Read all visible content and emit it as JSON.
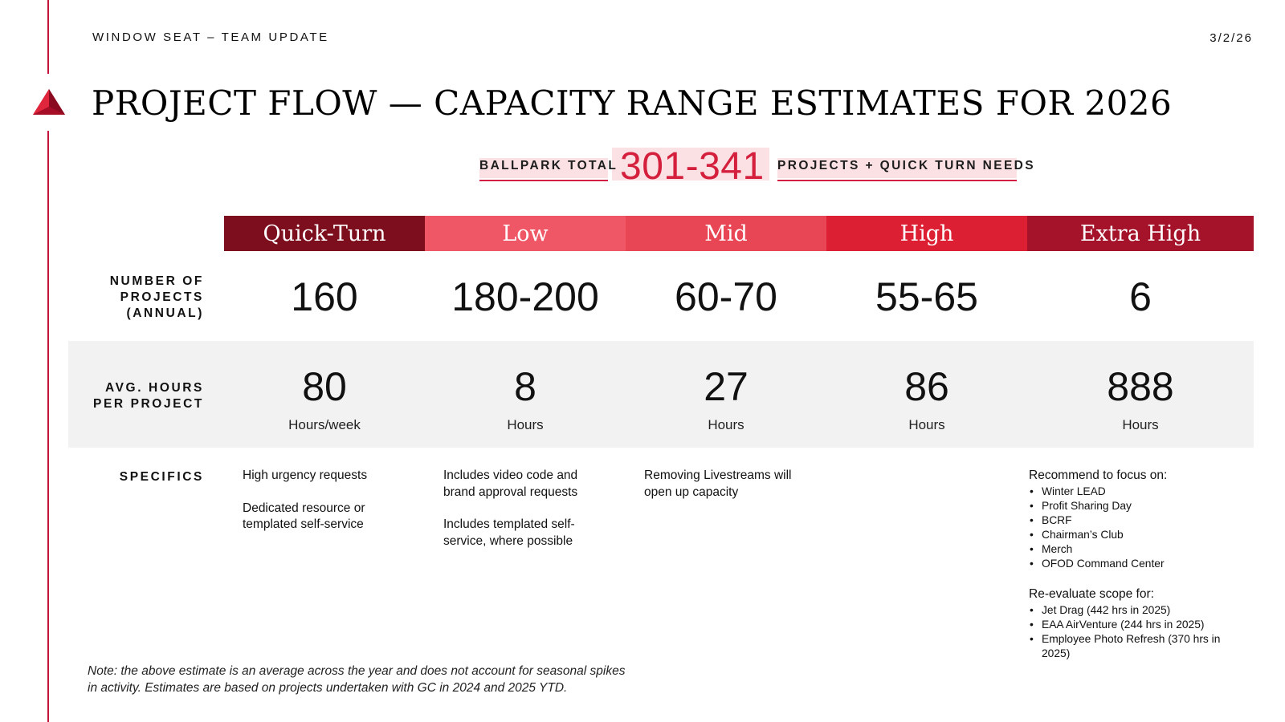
{
  "header": {
    "kicker": "WINDOW SEAT – TEAM UPDATE",
    "date": "3/2/26"
  },
  "title": "PROJECT FLOW — CAPACITY RANGE ESTIMATES FOR 2026",
  "ballpark": {
    "left_label": "BALLPARK TOTAL",
    "number": "301-341",
    "right_label": "PROJECTS + QUICK TURN NEEDS"
  },
  "row_labels": {
    "projects_line1": "NUMBER OF",
    "projects_line2": "PROJECTS",
    "projects_line3": "(ANNUAL)",
    "hours_line1": "AVG. HOURS",
    "hours_line2": "PER PROJECT",
    "specifics": "SPECIFICS"
  },
  "tiers": [
    {
      "name": "Quick-Turn",
      "color": "#7d0e1e",
      "projects": "160",
      "hours": "80",
      "hours_unit": "Hours/week"
    },
    {
      "name": "Low",
      "color": "#ef5767",
      "projects": "180-200",
      "hours": "8",
      "hours_unit": "Hours"
    },
    {
      "name": "Mid",
      "color": "#e84655",
      "projects": "60-70",
      "hours": "27",
      "hours_unit": "Hours"
    },
    {
      "name": "High",
      "color": "#dc1f33",
      "projects": "55-65",
      "hours": "86",
      "hours_unit": "Hours"
    },
    {
      "name": "Extra High",
      "color": "#a4132a",
      "projects": "6",
      "hours": "888",
      "hours_unit": "Hours"
    }
  ],
  "specifics": {
    "quick_turn": {
      "p1_line1": "High urgency requests",
      "p2_line1": "Dedicated resource or",
      "p2_line2": "templated self-service"
    },
    "low": {
      "p1_line1": "Includes video code and",
      "p1_line2": "brand approval requests",
      "p2_line1": "Includes templated self-",
      "p2_line2": "service, where possible"
    },
    "mid": {
      "p1_line1": "Removing Livestreams will",
      "p1_line2": "open up capacity"
    },
    "extra_high": {
      "focus_heading": "Recommend to focus on:",
      "focus_items": [
        "Winter LEAD",
        "Profit Sharing Day",
        "BCRF",
        "Chairman’s Club",
        "Merch",
        "OFOD Command Center"
      ],
      "reevaluate_heading": "Re-evaluate scope for:",
      "reevaluate_items": [
        "Jet Drag (442 hrs in 2025)",
        "EAA AirVenture (244 hrs in 2025)",
        "Employee Photo Refresh (370 hrs in 2025)"
      ]
    }
  },
  "note": {
    "line1": "Note: the above estimate is an average across the year and does not account for seasonal spikes",
    "line2": "in activity. Estimates are based on projects undertaken with GC in 2024 and 2025 YTD."
  },
  "colors": {
    "accent_red": "#d41f3d",
    "rule_red": "#c4143b",
    "ballpark_highlight": "#fbe1e4",
    "band_gray": "#f2f2f2"
  },
  "icons": {
    "logo": "triangle-widget-logo-icon"
  }
}
